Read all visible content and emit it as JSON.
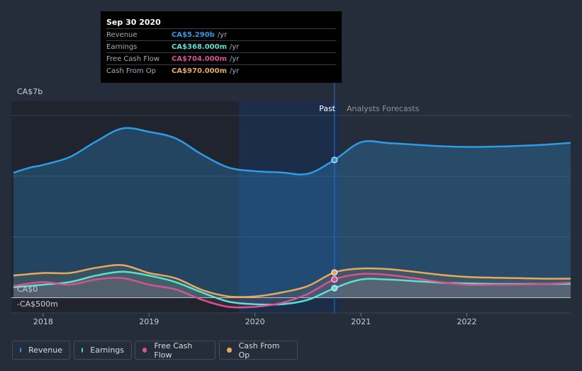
{
  "tooltip": {
    "title": "Sep 30 2020",
    "rows": [
      {
        "label": "Revenue",
        "value": "CA$5.290b",
        "unit": "/yr",
        "color": "#2f9be6"
      },
      {
        "label": "Earnings",
        "value": "CA$368.000m",
        "unit": "/yr",
        "color": "#5ddfd1"
      },
      {
        "label": "Free Cash Flow",
        "value": "CA$704.000m",
        "unit": "/yr",
        "color": "#d8538e"
      },
      {
        "label": "Cash From Op",
        "value": "CA$970.000m",
        "unit": "/yr",
        "color": "#e8a95c"
      }
    ]
  },
  "labels": {
    "past": "Past",
    "forecast": "Analysts Forecasts"
  },
  "legend": [
    {
      "label": "Revenue",
      "color": "#2f9be6"
    },
    {
      "label": "Earnings",
      "color": "#5ddfd1"
    },
    {
      "label": "Free Cash Flow",
      "color": "#d8538e"
    },
    {
      "label": "Cash From Op",
      "color": "#e8a95c"
    }
  ],
  "chart_data": {
    "type": "line",
    "y_tick_labels": [
      "CA$7b",
      "CA$0",
      "-CA$500m"
    ],
    "x_tick_labels": [
      "2018",
      "2019",
      "2020",
      "2021",
      "2022"
    ],
    "ylim": [
      -500,
      7000
    ],
    "xlim": [
      2017.7,
      2022.98
    ],
    "divider_x": 2020.75,
    "grid": true,
    "series": [
      {
        "name": "Revenue",
        "color": "#2f9be6",
        "x": [
          2017.72,
          2017.88,
          2018.0,
          2018.25,
          2018.5,
          2018.75,
          2019.0,
          2019.25,
          2019.5,
          2019.75,
          2020.0,
          2020.25,
          2020.5,
          2020.75,
          2021.0,
          2021.25,
          2021.5,
          2021.75,
          2022.0,
          2022.25,
          2022.5,
          2022.75,
          2022.98
        ],
        "values": [
          4800,
          5000,
          5100,
          5400,
          6000,
          6500,
          6370,
          6120,
          5500,
          5000,
          4860,
          4810,
          4760,
          5290,
          5970,
          5940,
          5880,
          5820,
          5790,
          5800,
          5830,
          5880,
          5950
        ]
      },
      {
        "name": "Earnings",
        "color": "#5ddfd1",
        "x": [
          2017.72,
          2018.0,
          2018.25,
          2018.5,
          2018.75,
          2019.0,
          2019.25,
          2019.5,
          2019.75,
          2020.0,
          2020.25,
          2020.5,
          2020.75,
          2021.0,
          2021.25,
          2021.5,
          2021.75,
          2022.0,
          2022.25,
          2022.5,
          2022.75,
          2022.98
        ],
        "values": [
          400,
          500,
          600,
          850,
          1000,
          850,
          600,
          200,
          -150,
          -250,
          -250,
          -80,
          368,
          700,
          700,
          640,
          580,
          550,
          530,
          530,
          530,
          530
        ]
      },
      {
        "name": "Free Cash Flow",
        "color": "#d8538e",
        "x": [
          2017.72,
          2018.0,
          2018.25,
          2018.5,
          2018.75,
          2019.0,
          2019.25,
          2019.5,
          2019.75,
          2020.0,
          2020.25,
          2020.5,
          2020.75,
          2021.0,
          2021.25,
          2021.5,
          2021.75,
          2022.0,
          2022.25,
          2022.5,
          2022.75,
          2022.98
        ],
        "values": [
          450,
          600,
          500,
          700,
          750,
          500,
          320,
          -80,
          -350,
          -350,
          -200,
          150,
          704,
          910,
          880,
          750,
          600,
          500,
          500,
          510,
          530,
          580
        ]
      },
      {
        "name": "Cash From Op",
        "color": "#e8a95c",
        "x": [
          2017.72,
          2018.0,
          2018.25,
          2018.5,
          2018.75,
          2019.0,
          2019.25,
          2019.5,
          2019.75,
          2020.0,
          2020.25,
          2020.5,
          2020.75,
          2021.0,
          2021.25,
          2021.5,
          2021.75,
          2022.0,
          2022.25,
          2022.5,
          2022.75,
          2022.98
        ],
        "values": [
          850,
          950,
          950,
          1150,
          1250,
          950,
          750,
          300,
          50,
          50,
          200,
          450,
          970,
          1120,
          1100,
          1000,
          880,
          800,
          770,
          750,
          730,
          730
        ]
      }
    ]
  }
}
